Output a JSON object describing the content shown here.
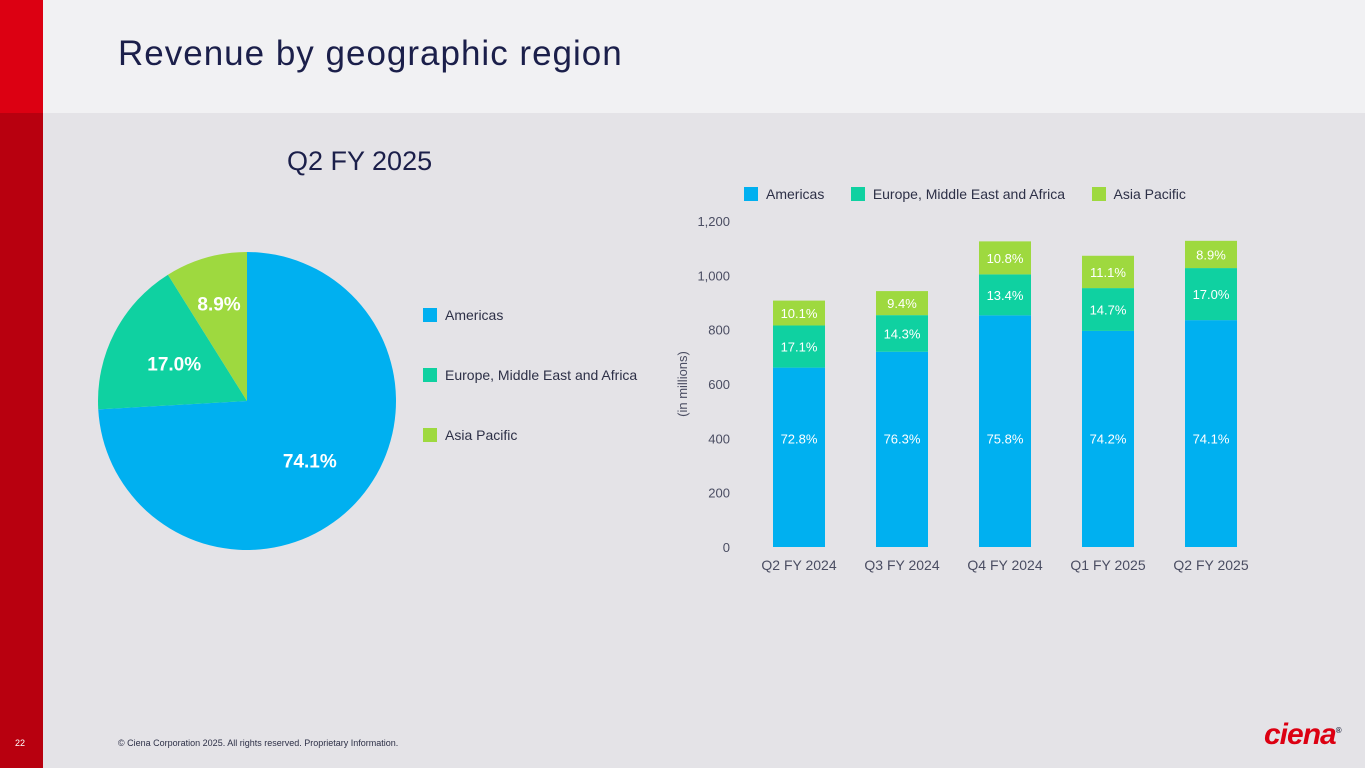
{
  "page": {
    "title": "Revenue by geographic region",
    "page_number": "22",
    "copyright": "© Ciena Corporation 2025. All rights reserved. Proprietary Information.",
    "logo_text": "ciena",
    "logo_mark": "®"
  },
  "colors": {
    "americas": "#00b0f0",
    "emea": "#0fd1a1",
    "apac": "#9ed93f",
    "brand_red": "#dc0012"
  },
  "chart_data": [
    {
      "type": "pie",
      "title": "Q2 FY 2025",
      "labels": [
        "Americas",
        "Europe, Middle East and Africa",
        "Asia Pacific"
      ],
      "values": [
        74.1,
        17.0,
        8.9
      ],
      "value_labels": [
        "74.1%",
        "17.0%",
        "8.9%"
      ],
      "legend": "right"
    },
    {
      "type": "bar",
      "stacked": true,
      "categories": [
        "Q2 FY 2024",
        "Q3 FY 2024",
        "Q4 FY 2024",
        "Q1 FY 2025",
        "Q2 FY 2025"
      ],
      "totals": [
        907,
        942,
        1125,
        1072,
        1127
      ],
      "series": [
        {
          "name": "Americas",
          "shares": [
            72.8,
            76.3,
            75.8,
            74.2,
            74.1
          ],
          "labels": [
            "72.8%",
            "76.3%",
            "75.8%",
            "74.2%",
            "74.1%"
          ]
        },
        {
          "name": "Europe, Middle East and Africa",
          "shares": [
            17.1,
            14.3,
            13.4,
            14.7,
            17.0
          ],
          "labels": [
            "17.1%",
            "14.3%",
            "13.4%",
            "14.7%",
            "17.0%"
          ]
        },
        {
          "name": "Asia Pacific",
          "shares": [
            10.1,
            9.4,
            10.8,
            11.1,
            8.9
          ],
          "labels": [
            "10.1%",
            "9.4%",
            "10.8%",
            "11.1%",
            "8.9%"
          ]
        }
      ],
      "ylabel": "(in millions)",
      "ylim": [
        0,
        1200
      ],
      "yticks": [
        0,
        200,
        400,
        600,
        800,
        1000,
        1200
      ],
      "ytick_labels": [
        "0",
        "200",
        "400",
        "600",
        "800",
        "1,000",
        "1,200"
      ],
      "legend": "top"
    }
  ]
}
